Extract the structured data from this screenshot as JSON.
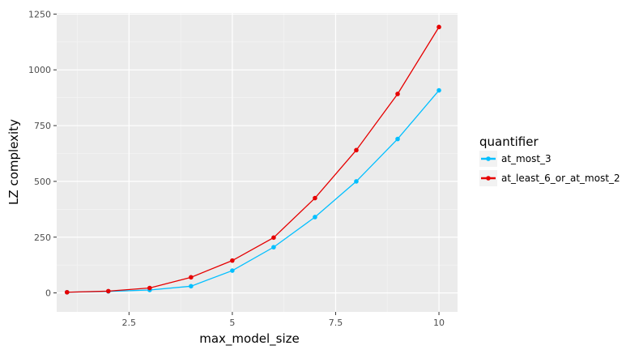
{
  "chart_data": {
    "type": "line",
    "xlabel": "max_model_size",
    "ylabel": "LZ complexity",
    "xlim": [
      0.75,
      10.45
    ],
    "ylim": [
      -85,
      1255
    ],
    "x_ticks": [
      2.5,
      5,
      7.5,
      10
    ],
    "x_tick_labels": [
      "2.5",
      "5",
      "7.5",
      "10"
    ],
    "y_ticks": [
      0,
      250,
      500,
      750,
      1000,
      1250
    ],
    "y_tick_labels": [
      "0",
      "250",
      "500",
      "750",
      "1000",
      "1250"
    ],
    "grid": true,
    "legend_position": "right",
    "legend_title": "quantifier",
    "series": [
      {
        "name": "at_most_3",
        "color": "#00BFFF",
        "x": [
          1,
          2,
          3,
          4,
          5,
          6,
          7,
          8,
          9,
          10
        ],
        "values": [
          3,
          7,
          13,
          30,
          100,
          205,
          340,
          500,
          690,
          908
        ]
      },
      {
        "name": "at_least_6_or_at_most_2",
        "color": "#E60000",
        "x": [
          1,
          2,
          3,
          4,
          5,
          6,
          7,
          8,
          9,
          10
        ],
        "values": [
          3,
          8,
          22,
          70,
          145,
          248,
          425,
          640,
          892,
          1192
        ]
      }
    ]
  }
}
